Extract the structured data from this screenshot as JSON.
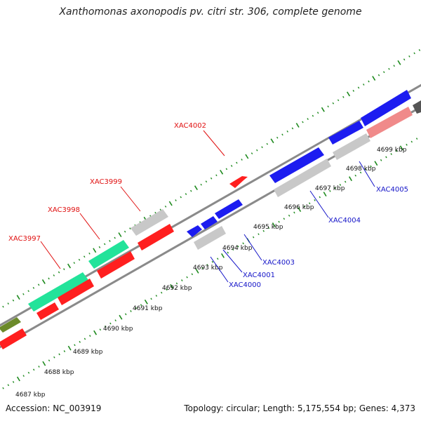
{
  "title": "Xanthomonas axonopodis pv. citri str. 306, complete genome",
  "footer": {
    "accession": "Accession: NC_003919",
    "summary": "Topology: circular; Length: 5,175,554 bp; Genes: 4,373"
  },
  "colors": {
    "backbone": "#8a8a8a",
    "ticks": "#1e8a1e",
    "red": "#ff1f1f",
    "green": "#22e39a",
    "blue": "#1c1cf0",
    "gray": "#c8c8c8",
    "pink": "#f08a8a",
    "olive": "#6b8a2a",
    "label_red": "#e01010",
    "label_blue": "#1414c8"
  },
  "kbp_labels": [
    "4687 kbp",
    "4688 kbp",
    "4689 kbp",
    "4690 kbp",
    "4691 kbp",
    "4692 kbp",
    "4693 kbp",
    "4694 kbp",
    "4695 kbp",
    "4696 kbp",
    "4697 kbp",
    "4698 kbp",
    "4699 kbp"
  ],
  "gene_labels": {
    "top": [
      {
        "text": "XAC3997",
        "color": "red"
      },
      {
        "text": "XAC3998",
        "color": "red"
      },
      {
        "text": "XAC3999",
        "color": "red"
      },
      {
        "text": "XAC4002",
        "color": "red"
      }
    ],
    "bottom": [
      {
        "text": "XAC4000",
        "color": "blue"
      },
      {
        "text": "XAC4001",
        "color": "blue"
      },
      {
        "text": "XAC4003",
        "color": "blue"
      },
      {
        "text": "XAC4004",
        "color": "blue"
      },
      {
        "text": "XAC4005",
        "color": "blue"
      }
    ]
  }
}
